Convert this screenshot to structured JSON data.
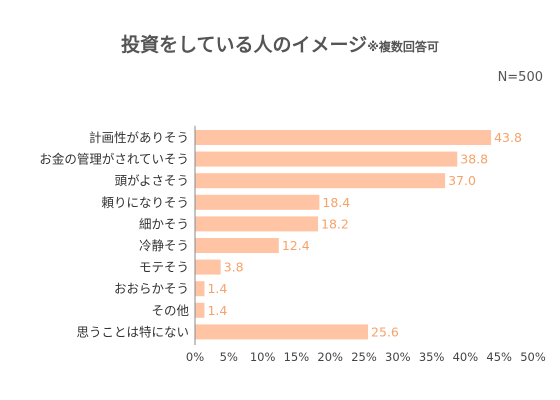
{
  "title": "投資をしている人のイメージ",
  "title_note": "※複数回答可",
  "sample_size": "N=500",
  "colors": {
    "bar": "#ffc4a3",
    "value_label": "#f5a36b",
    "axis": "#888888",
    "text": "#555555"
  },
  "chart_data": {
    "type": "bar",
    "orientation": "horizontal",
    "categories": [
      "計画性がありそう",
      "お金の管理がされていそう",
      "頭がよさそう",
      "頼りになりそう",
      "細かそう",
      "冷静そう",
      "モテそう",
      "おおらかそう",
      "その他",
      "思うことは特にない"
    ],
    "values": [
      43.8,
      38.8,
      37.0,
      18.4,
      18.2,
      12.4,
      3.8,
      1.4,
      1.4,
      25.6
    ],
    "value_labels": [
      "43.8",
      "38.8",
      "37.0",
      "18.4",
      "18.2",
      "12.4",
      "3.8",
      "1.4",
      "1.4",
      "25.6"
    ],
    "xlim": [
      0,
      50
    ],
    "x_ticks": [
      0,
      5,
      10,
      15,
      20,
      25,
      30,
      35,
      40,
      45,
      50
    ],
    "x_tick_labels": [
      "0%",
      "5%",
      "10%",
      "15%",
      "20%",
      "25%",
      "30%",
      "35%",
      "40%",
      "45%",
      "50%"
    ],
    "grid": false,
    "legend": "none"
  }
}
